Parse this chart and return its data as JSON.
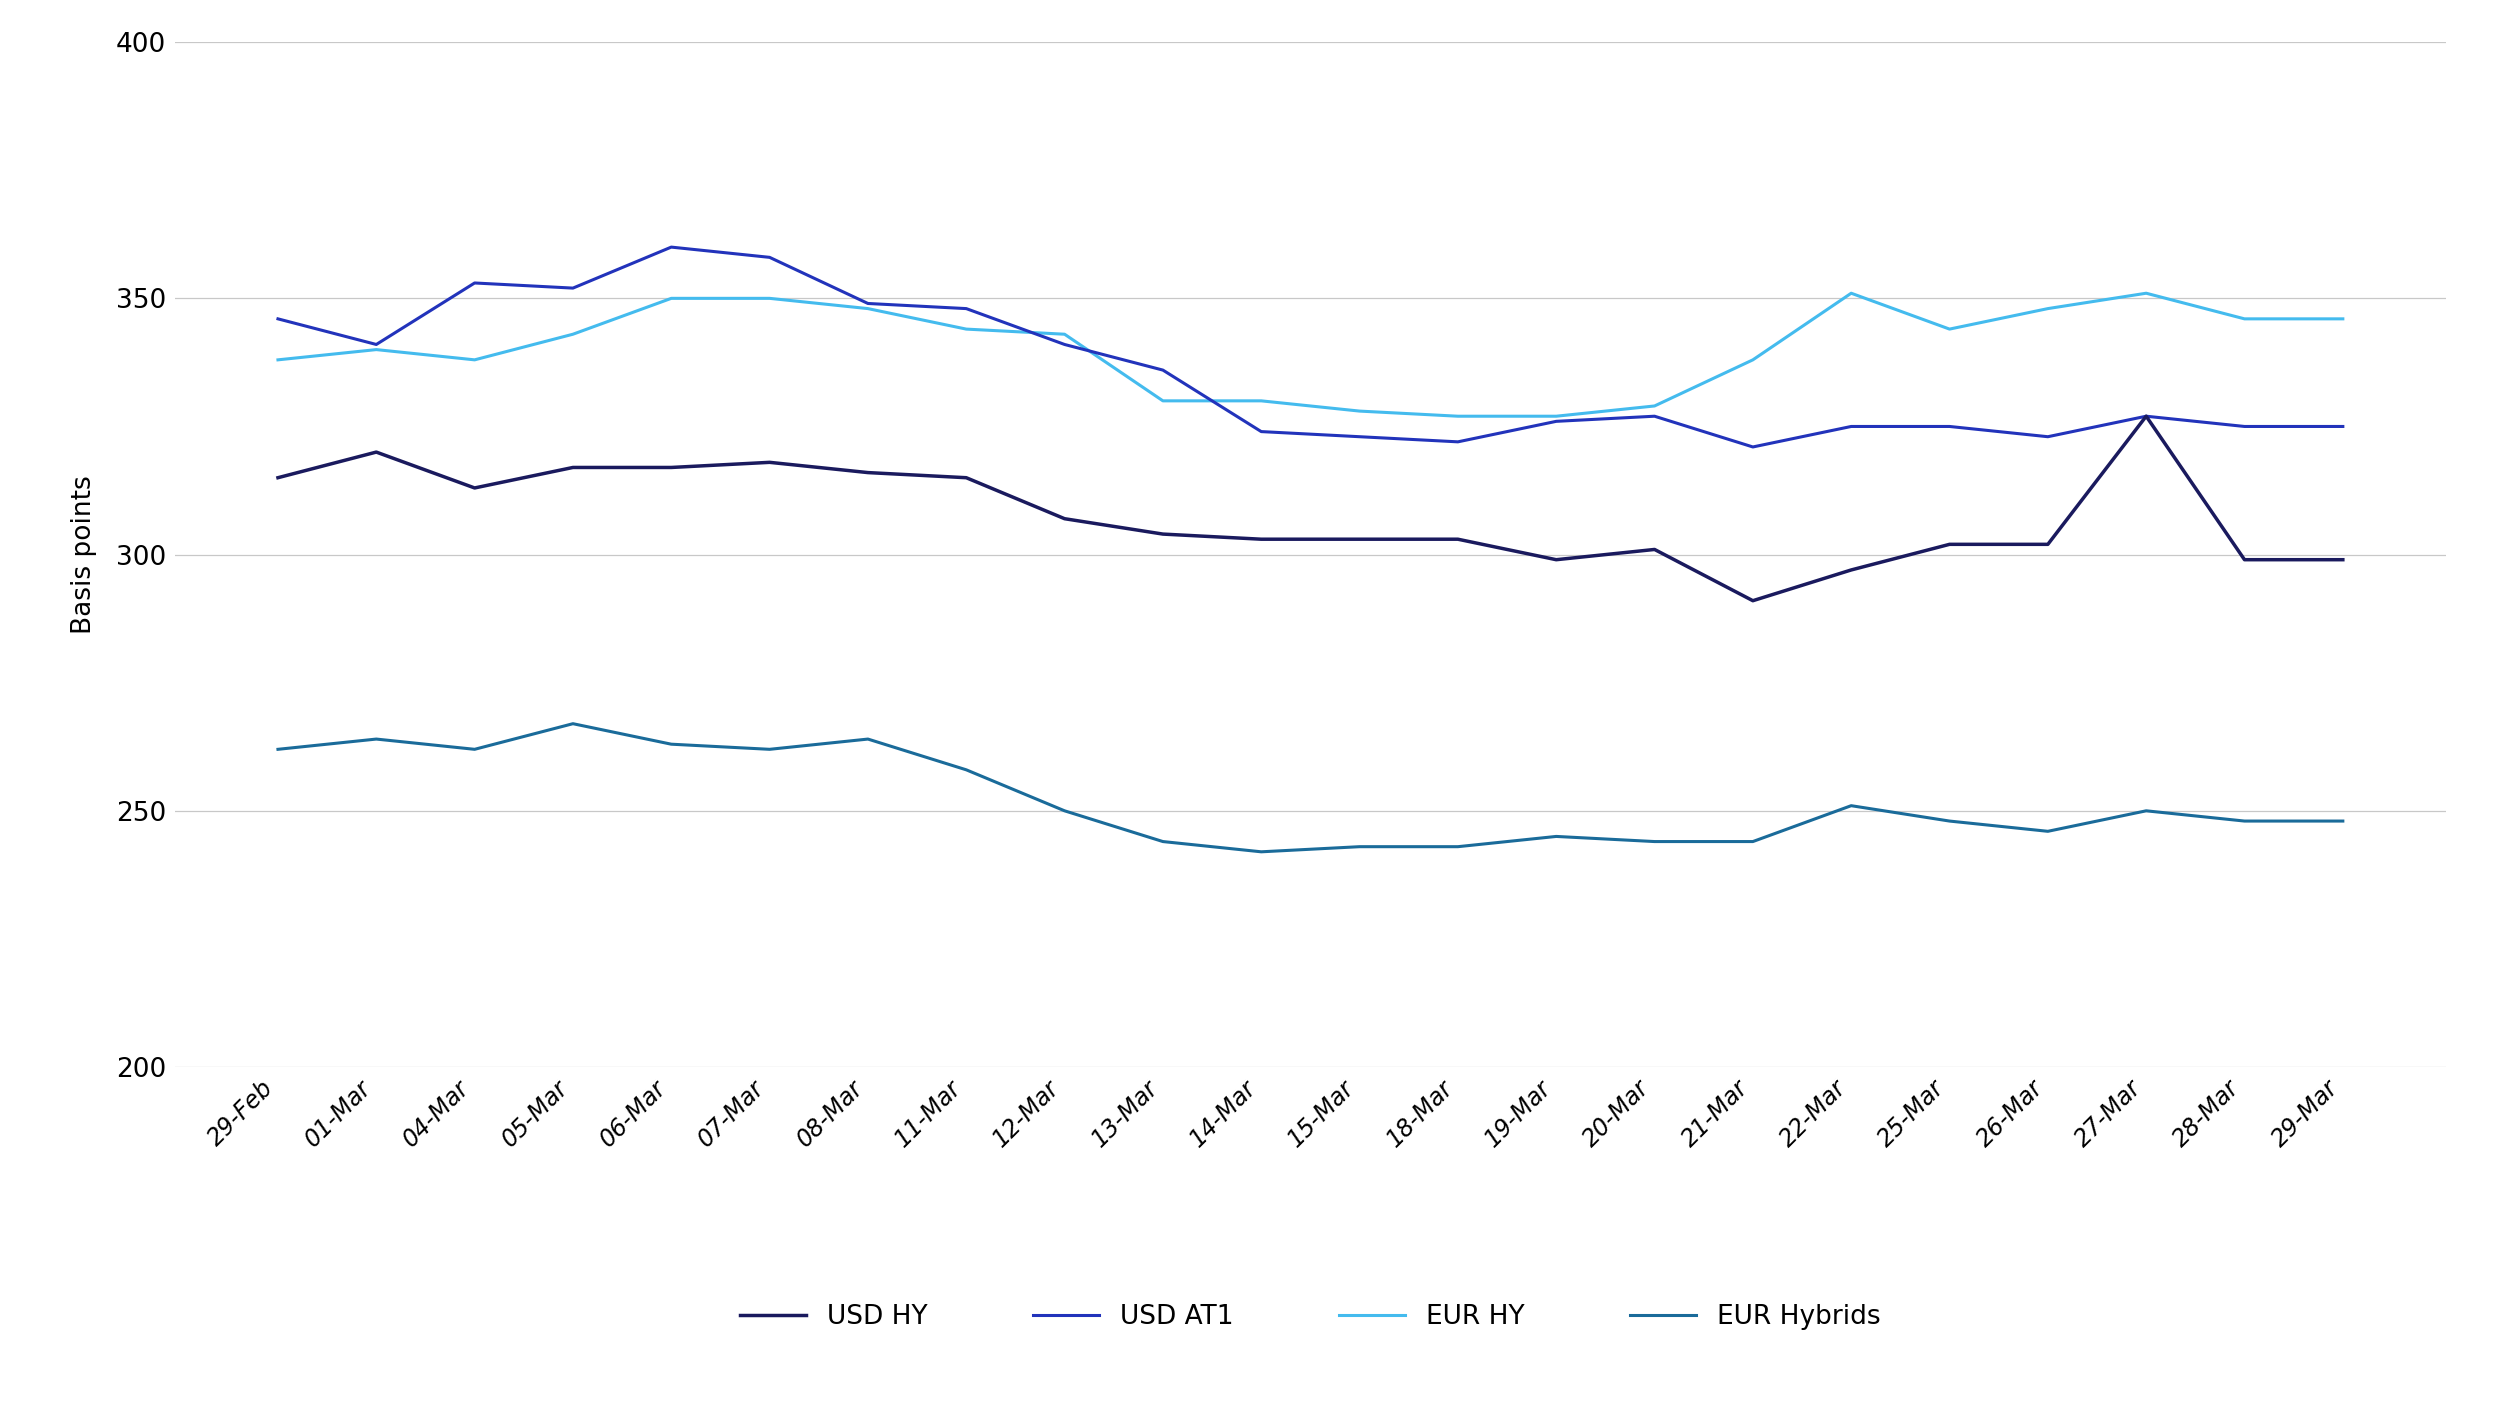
{
  "x_labels": [
    "29-Feb",
    "01-Mar",
    "04-Mar",
    "05-Mar",
    "06-Mar",
    "07-Mar",
    "08-Mar",
    "11-Mar",
    "12-Mar",
    "13-Mar",
    "14-Mar",
    "15-Mar",
    "18-Mar",
    "19-Mar",
    "20-Mar",
    "21-Mar",
    "22-Mar",
    "25-Mar",
    "26-Mar",
    "27-Mar",
    "28-Mar",
    "29-Mar"
  ],
  "USD_HY": [
    315,
    320,
    313,
    317,
    317,
    318,
    316,
    315,
    307,
    304,
    303,
    303,
    303,
    299,
    301,
    291,
    297,
    302,
    302,
    327,
    299,
    299
  ],
  "USD_AT1": [
    346,
    341,
    353,
    352,
    360,
    358,
    349,
    348,
    341,
    336,
    324,
    323,
    322,
    326,
    327,
    321,
    325,
    325,
    323,
    327,
    325,
    325
  ],
  "EUR_HY": [
    338,
    340,
    338,
    343,
    350,
    350,
    348,
    344,
    343,
    330,
    330,
    328,
    327,
    327,
    329,
    338,
    351,
    344,
    348,
    351,
    346,
    346
  ],
  "EUR_Hybrids": [
    262,
    264,
    262,
    267,
    263,
    262,
    264,
    258,
    250,
    244,
    242,
    243,
    243,
    245,
    244,
    244,
    251,
    248,
    246,
    250,
    248,
    248
  ],
  "colors": {
    "USD_HY": "#1a1a5e",
    "USD_AT1": "#2233bb",
    "EUR_HY": "#44bbee",
    "EUR_Hybrids": "#1a6b9a"
  },
  "legend_labels": [
    "USD HY",
    "USD AT1",
    "EUR HY",
    "EUR Hybrids"
  ],
  "ylabel": "Basis points",
  "ylim": [
    200,
    400
  ],
  "yticks": [
    200,
    250,
    300,
    350,
    400
  ],
  "background_color": "#ffffff",
  "grid_color": "#c8c8c8",
  "line_width": 2.2
}
